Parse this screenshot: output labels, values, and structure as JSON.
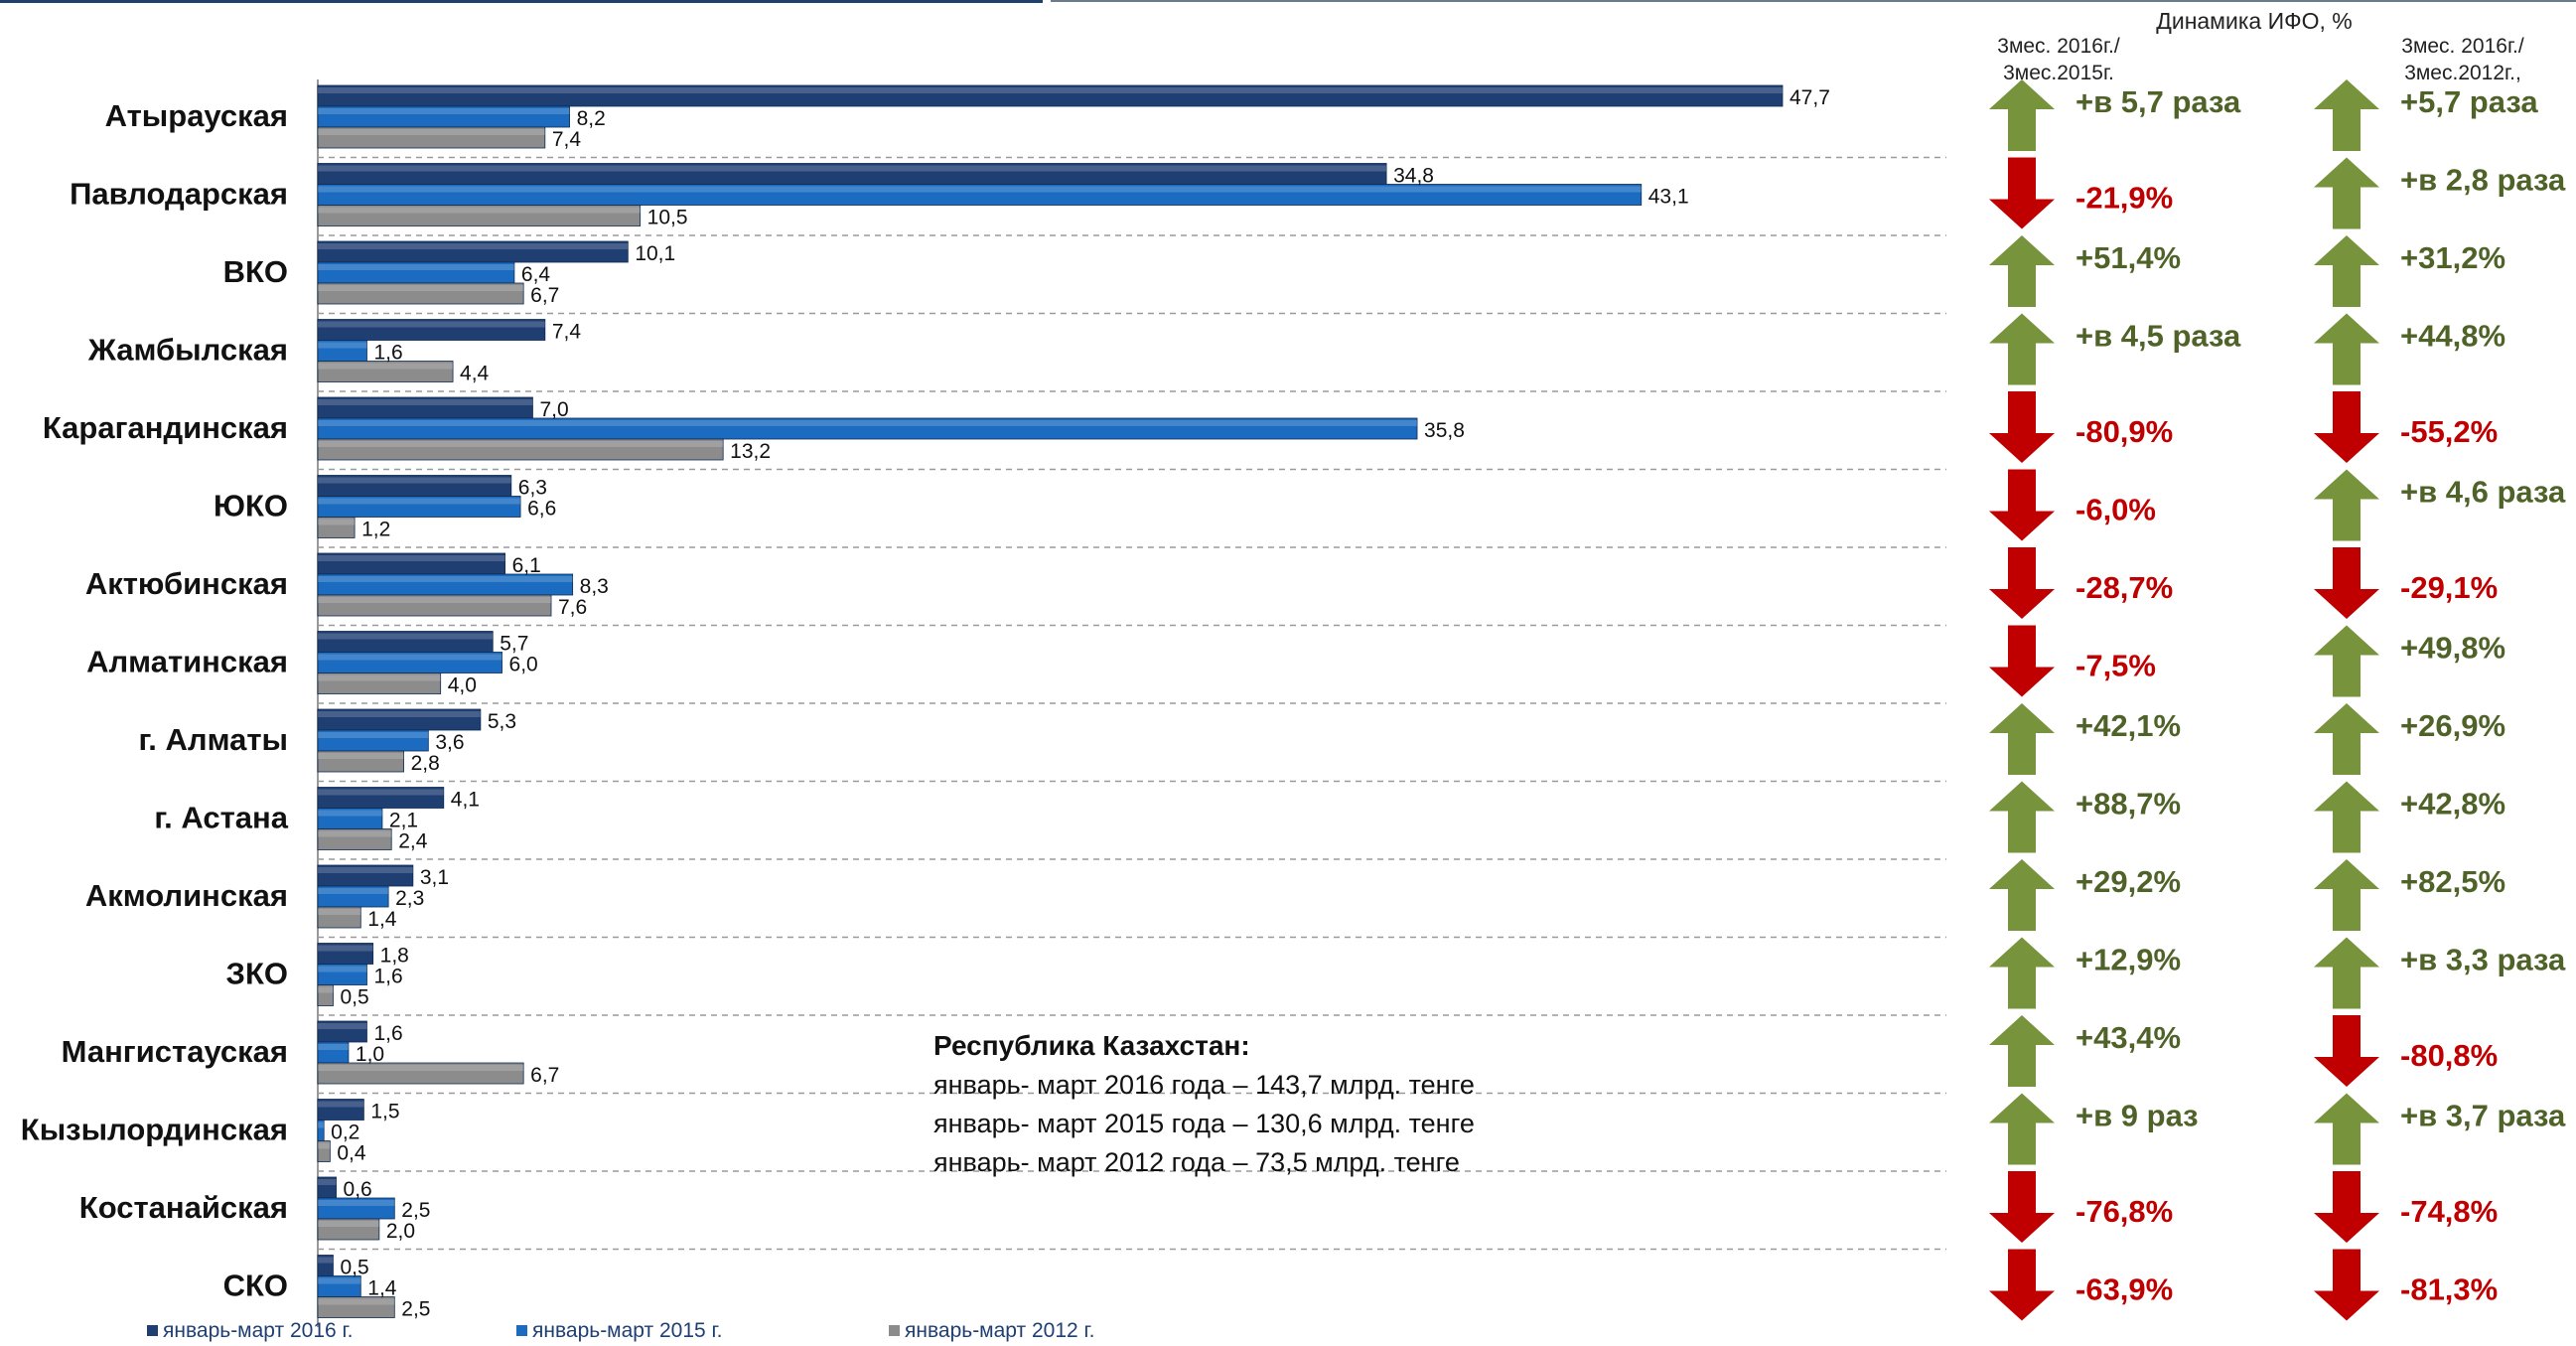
{
  "colors": {
    "series": [
      "#1f3f73",
      "#1b6cc1",
      "#8c8c8c"
    ],
    "up": "#77933c",
    "down": "#c00000",
    "up_text": "#4f6228",
    "down_text": "#c00000",
    "rule": "#1f3f6e"
  },
  "header": {
    "title": "Динамика ИФО, %",
    "col1": [
      "3мес. 2016г./",
      "3мес.2015г."
    ],
    "col2": [
      "3мес. 2016г./",
      "3мес.2012г.,"
    ]
  },
  "summary": {
    "title": "Республика Казахстан:",
    "lines": [
      "январь- март 2016 года – 143,7 млрд. тенге",
      "январь- март 2015 года – 130,6 млрд. тенге",
      "январь- март 2012 года – 73,5 млрд. тенге"
    ]
  },
  "chart_data": {
    "type": "bar",
    "orientation": "horizontal",
    "categories": [
      "Атырауская",
      "Павлодарская",
      "ВКО",
      "Жамбылская",
      "Карагандинская",
      "ЮКО",
      "Актюбинская",
      "Алматинская",
      "г. Алматы",
      "г. Астана",
      "Акмолинская",
      "ЗКО",
      "Мангистауская",
      "Кызылординская",
      "Костанайская",
      "СКО"
    ],
    "series": [
      {
        "name": "январь-март 2016 г.",
        "values": [
          47.7,
          34.8,
          10.1,
          7.4,
          7.0,
          6.3,
          6.1,
          5.7,
          5.3,
          4.1,
          3.1,
          1.8,
          1.6,
          1.5,
          0.6,
          0.5
        ],
        "labels": [
          "47,7",
          "34,8",
          "10,1",
          "7,4",
          "7,0",
          "6,3",
          "6,1",
          "5,7",
          "5,3",
          "4,1",
          "3,1",
          "1,8",
          "1,6",
          "1,5",
          "0,6",
          "0,5"
        ]
      },
      {
        "name": "январь-март 2015 г.",
        "values": [
          8.2,
          43.1,
          6.4,
          1.6,
          35.8,
          6.6,
          8.3,
          6.0,
          3.6,
          2.1,
          2.3,
          1.6,
          1.0,
          0.2,
          2.5,
          1.4
        ],
        "labels": [
          "8,2",
          "43,1",
          "6,4",
          "1,6",
          "35,8",
          "6,6",
          "8,3",
          "6,0",
          "3,6",
          "2,1",
          "2,3",
          "1,6",
          "1,0",
          "0,2",
          "2,5",
          "1,4"
        ]
      },
      {
        "name": "январь-март 2012 г.",
        "values": [
          7.4,
          10.5,
          6.7,
          4.4,
          13.2,
          1.2,
          7.6,
          4.0,
          2.8,
          2.4,
          1.4,
          0.5,
          6.7,
          0.4,
          2.0,
          2.5
        ],
        "labels": [
          "7,4",
          "10,5",
          "6,7",
          "4,4",
          "13,2",
          "1,2",
          "7,6",
          "4,0",
          "2,8",
          "2,4",
          "1,4",
          "0,5",
          "6,7",
          "0,4",
          "2,0",
          "2,5"
        ]
      }
    ],
    "xlim": [
      0,
      50
    ],
    "legend_position": "bottom",
    "dynamics": {
      "vs_2015": [
        {
          "dir": "up",
          "text": "+в 5,7 раза"
        },
        {
          "dir": "down",
          "text": "-21,9%"
        },
        {
          "dir": "up",
          "text": "+51,4%"
        },
        {
          "dir": "up",
          "text": "+в 4,5 раза"
        },
        {
          "dir": "down",
          "text": "-80,9%"
        },
        {
          "dir": "down",
          "text": "-6,0%"
        },
        {
          "dir": "down",
          "text": "-28,7%"
        },
        {
          "dir": "down",
          "text": "-7,5%"
        },
        {
          "dir": "up",
          "text": "+42,1%"
        },
        {
          "dir": "up",
          "text": "+88,7%"
        },
        {
          "dir": "up",
          "text": "+29,2%"
        },
        {
          "dir": "up",
          "text": "+12,9%"
        },
        {
          "dir": "up",
          "text": "+43,4%"
        },
        {
          "dir": "up",
          "text": "+в 9 раз"
        },
        {
          "dir": "down",
          "text": "-76,8%"
        },
        {
          "dir": "down",
          "text": "-63,9%"
        }
      ],
      "vs_2012": [
        {
          "dir": "up",
          "text": "+5,7 раза"
        },
        {
          "dir": "up",
          "text": "+в 2,8 раза"
        },
        {
          "dir": "up",
          "text": "+31,2%"
        },
        {
          "dir": "up",
          "text": "+44,8%"
        },
        {
          "dir": "down",
          "text": "-55,2%"
        },
        {
          "dir": "up",
          "text": "+в 4,6 раза"
        },
        {
          "dir": "down",
          "text": "-29,1%"
        },
        {
          "dir": "up",
          "text": "+49,8%"
        },
        {
          "dir": "up",
          "text": "+26,9%"
        },
        {
          "dir": "up",
          "text": "+42,8%"
        },
        {
          "dir": "up",
          "text": "+82,5%"
        },
        {
          "dir": "up",
          "text": "+в 3,3 раза"
        },
        {
          "dir": "down",
          "text": "-80,8%"
        },
        {
          "dir": "up",
          "text": "+в 3,7 раза"
        },
        {
          "dir": "down",
          "text": "-74,8%"
        },
        {
          "dir": "down",
          "text": "-81,3%"
        }
      ]
    }
  }
}
